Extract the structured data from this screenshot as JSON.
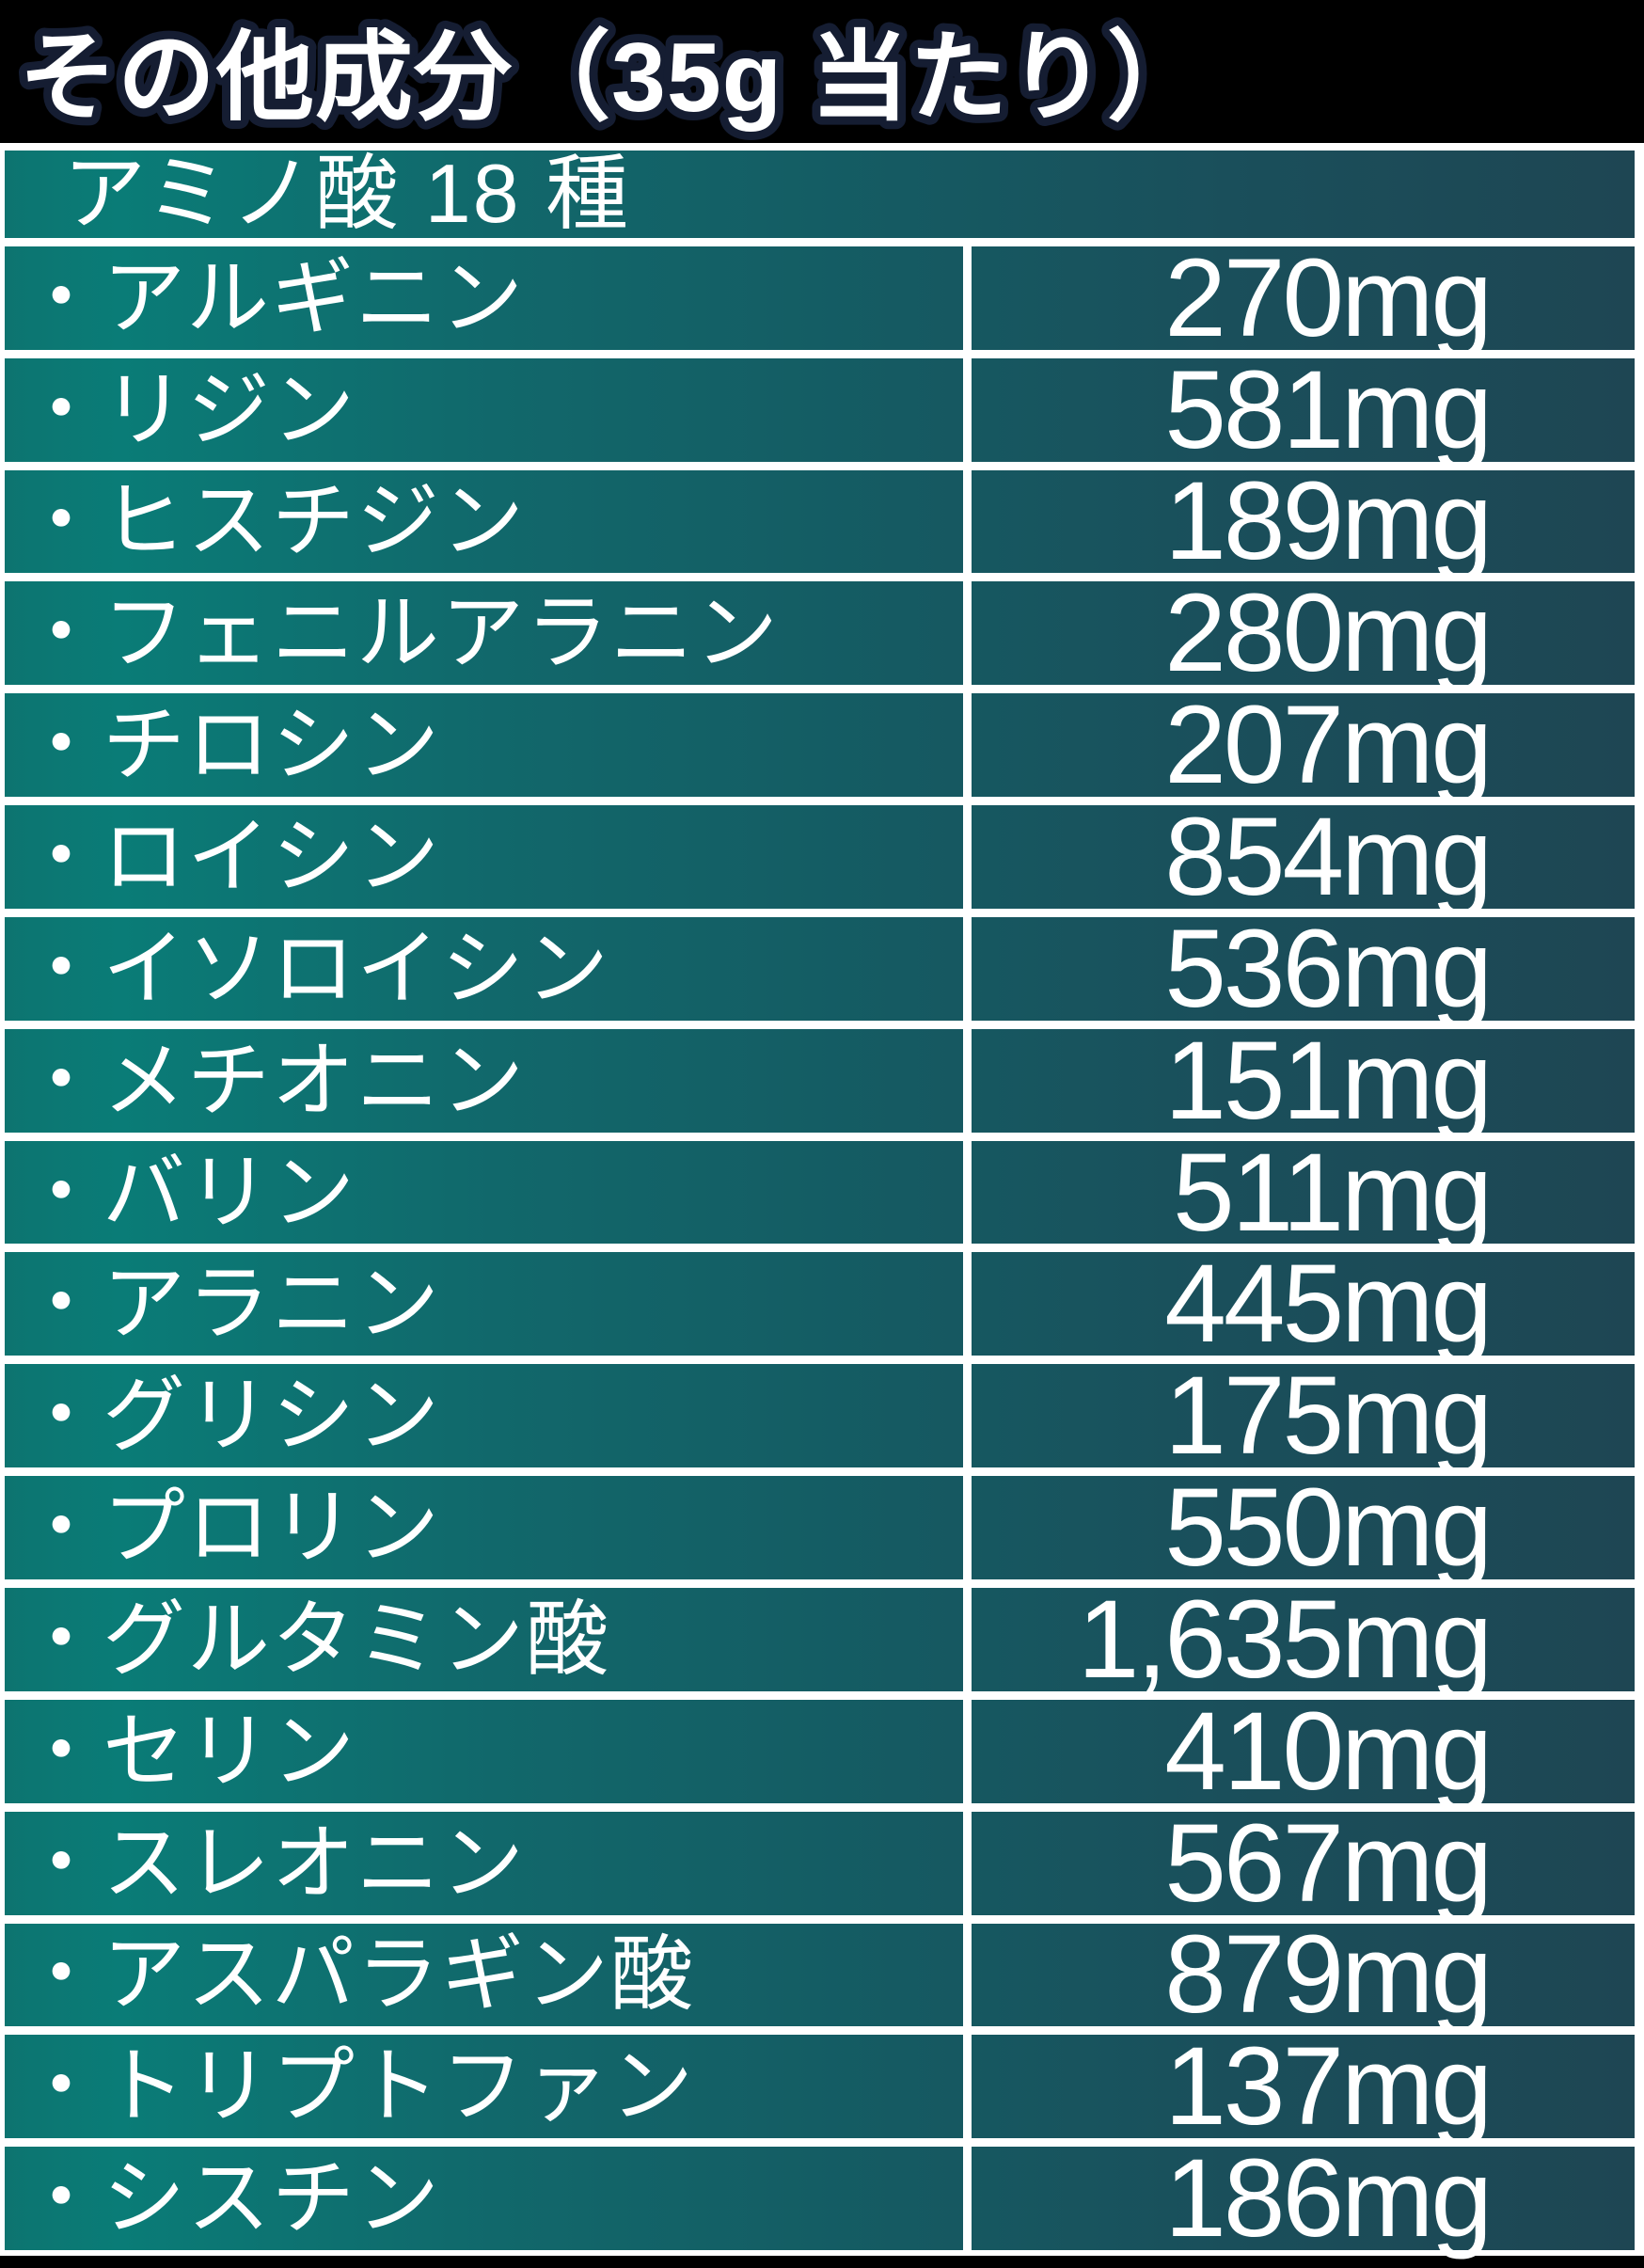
{
  "title": "その他成分（35g 当たり）",
  "table": {
    "header": "アミノ酸 18 種",
    "bullet": "・",
    "rows": [
      {
        "name": "アルギニン",
        "value": "270mg",
        "amount_mg": 270
      },
      {
        "name": "リジン",
        "value": "581mg",
        "amount_mg": 581
      },
      {
        "name": "ヒスチジン",
        "value": "189mg",
        "amount_mg": 189
      },
      {
        "name": "フェニルアラニン",
        "value": "280mg",
        "amount_mg": 280
      },
      {
        "name": "チロシン",
        "value": "207mg",
        "amount_mg": 207
      },
      {
        "name": "ロイシン",
        "value": "854mg",
        "amount_mg": 854
      },
      {
        "name": "イソロイシン",
        "value": "536mg",
        "amount_mg": 536
      },
      {
        "name": "メチオニン",
        "value": "151mg",
        "amount_mg": 151
      },
      {
        "name": "バリン",
        "value": "511mg",
        "amount_mg": 511
      },
      {
        "name": "アラニン",
        "value": "445mg",
        "amount_mg": 445
      },
      {
        "name": "グリシン",
        "value": "175mg",
        "amount_mg": 175
      },
      {
        "name": "プロリン",
        "value": "550mg",
        "amount_mg": 550
      },
      {
        "name": "グルタミン酸",
        "value": "1,635mg",
        "amount_mg": 1635
      },
      {
        "name": "セリン",
        "value": "410mg",
        "amount_mg": 410
      },
      {
        "name": "スレオニン",
        "value": "567mg",
        "amount_mg": 567
      },
      {
        "name": "アスパラギン酸",
        "value": "879mg",
        "amount_mg": 879
      },
      {
        "name": "トリプトファン",
        "value": "137mg",
        "amount_mg": 137
      },
      {
        "name": "シスチン",
        "value": "186mg",
        "amount_mg": 186
      }
    ]
  },
  "colors": {
    "background": "#000000",
    "row_gradient_left": "#0a7c77",
    "row_gradient_right": "#1e4653",
    "separator": "#ffffff",
    "text": "#ffffff",
    "title_outline": "#151d32"
  }
}
